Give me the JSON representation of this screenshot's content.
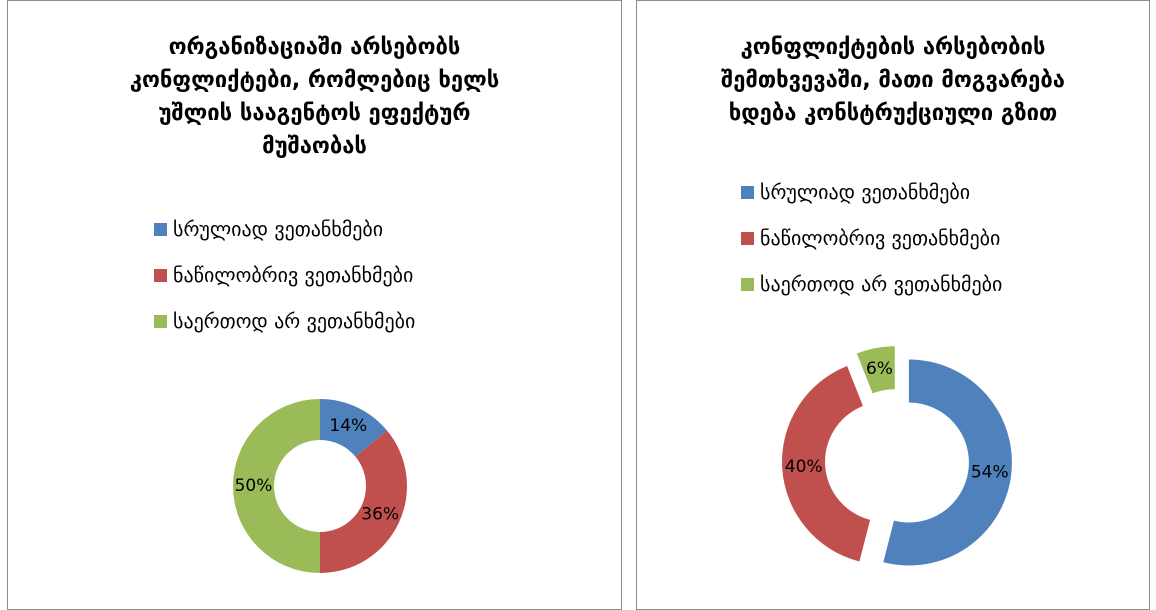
{
  "charts": [
    {
      "title_lines": [
        "ორგანიზაციაში არსებობს",
        "კონფლიქტები, რომლებიც ხელს",
        "უშლის სააგენტოს ეფექტურ",
        "მუშაობას"
      ]
    },
    {
      "title_lines": [
        "კონფლიქტების არსებობის",
        "შემთხვევაში, მათი მოგვარება",
        "ხდება კონსტრუქციული გზით"
      ]
    }
  ],
  "chart_data": [
    {
      "type": "pie",
      "variant": "doughnut",
      "title": "ორგანიზაციაში არსებობს კონფლიქტები, რომლებიც ხელს უშლის სააგენტოს ეფექტურ მუშაობას",
      "categories": [
        "სრულიად ვეთანხმები",
        "ნაწილობრივ ვეთანხმები",
        "საერთოდ არ ვეთანხმები"
      ],
      "values": [
        14,
        36,
        50
      ],
      "data_labels": [
        "14%",
        "36%",
        "50%"
      ],
      "colors": [
        "#4f81bd",
        "#c0504d",
        "#9bbb59"
      ],
      "exploded": false,
      "legend_position": "top"
    },
    {
      "type": "pie",
      "variant": "doughnut",
      "title": "კონფლიქტების არსებობის შემთხვევაში, მათი მოგვარება ხდება კონსტრუქციული გზით",
      "categories": [
        "სრულიად ვეთანხმები",
        "ნაწილობრივ ვეთანხმები",
        "საერთოდ არ ვეთანხმები"
      ],
      "values": [
        54,
        40,
        6
      ],
      "data_labels": [
        "54%",
        "40%",
        "6%"
      ],
      "colors": [
        "#4f81bd",
        "#c0504d",
        "#9bbb59"
      ],
      "exploded": true,
      "legend_position": "top"
    }
  ]
}
